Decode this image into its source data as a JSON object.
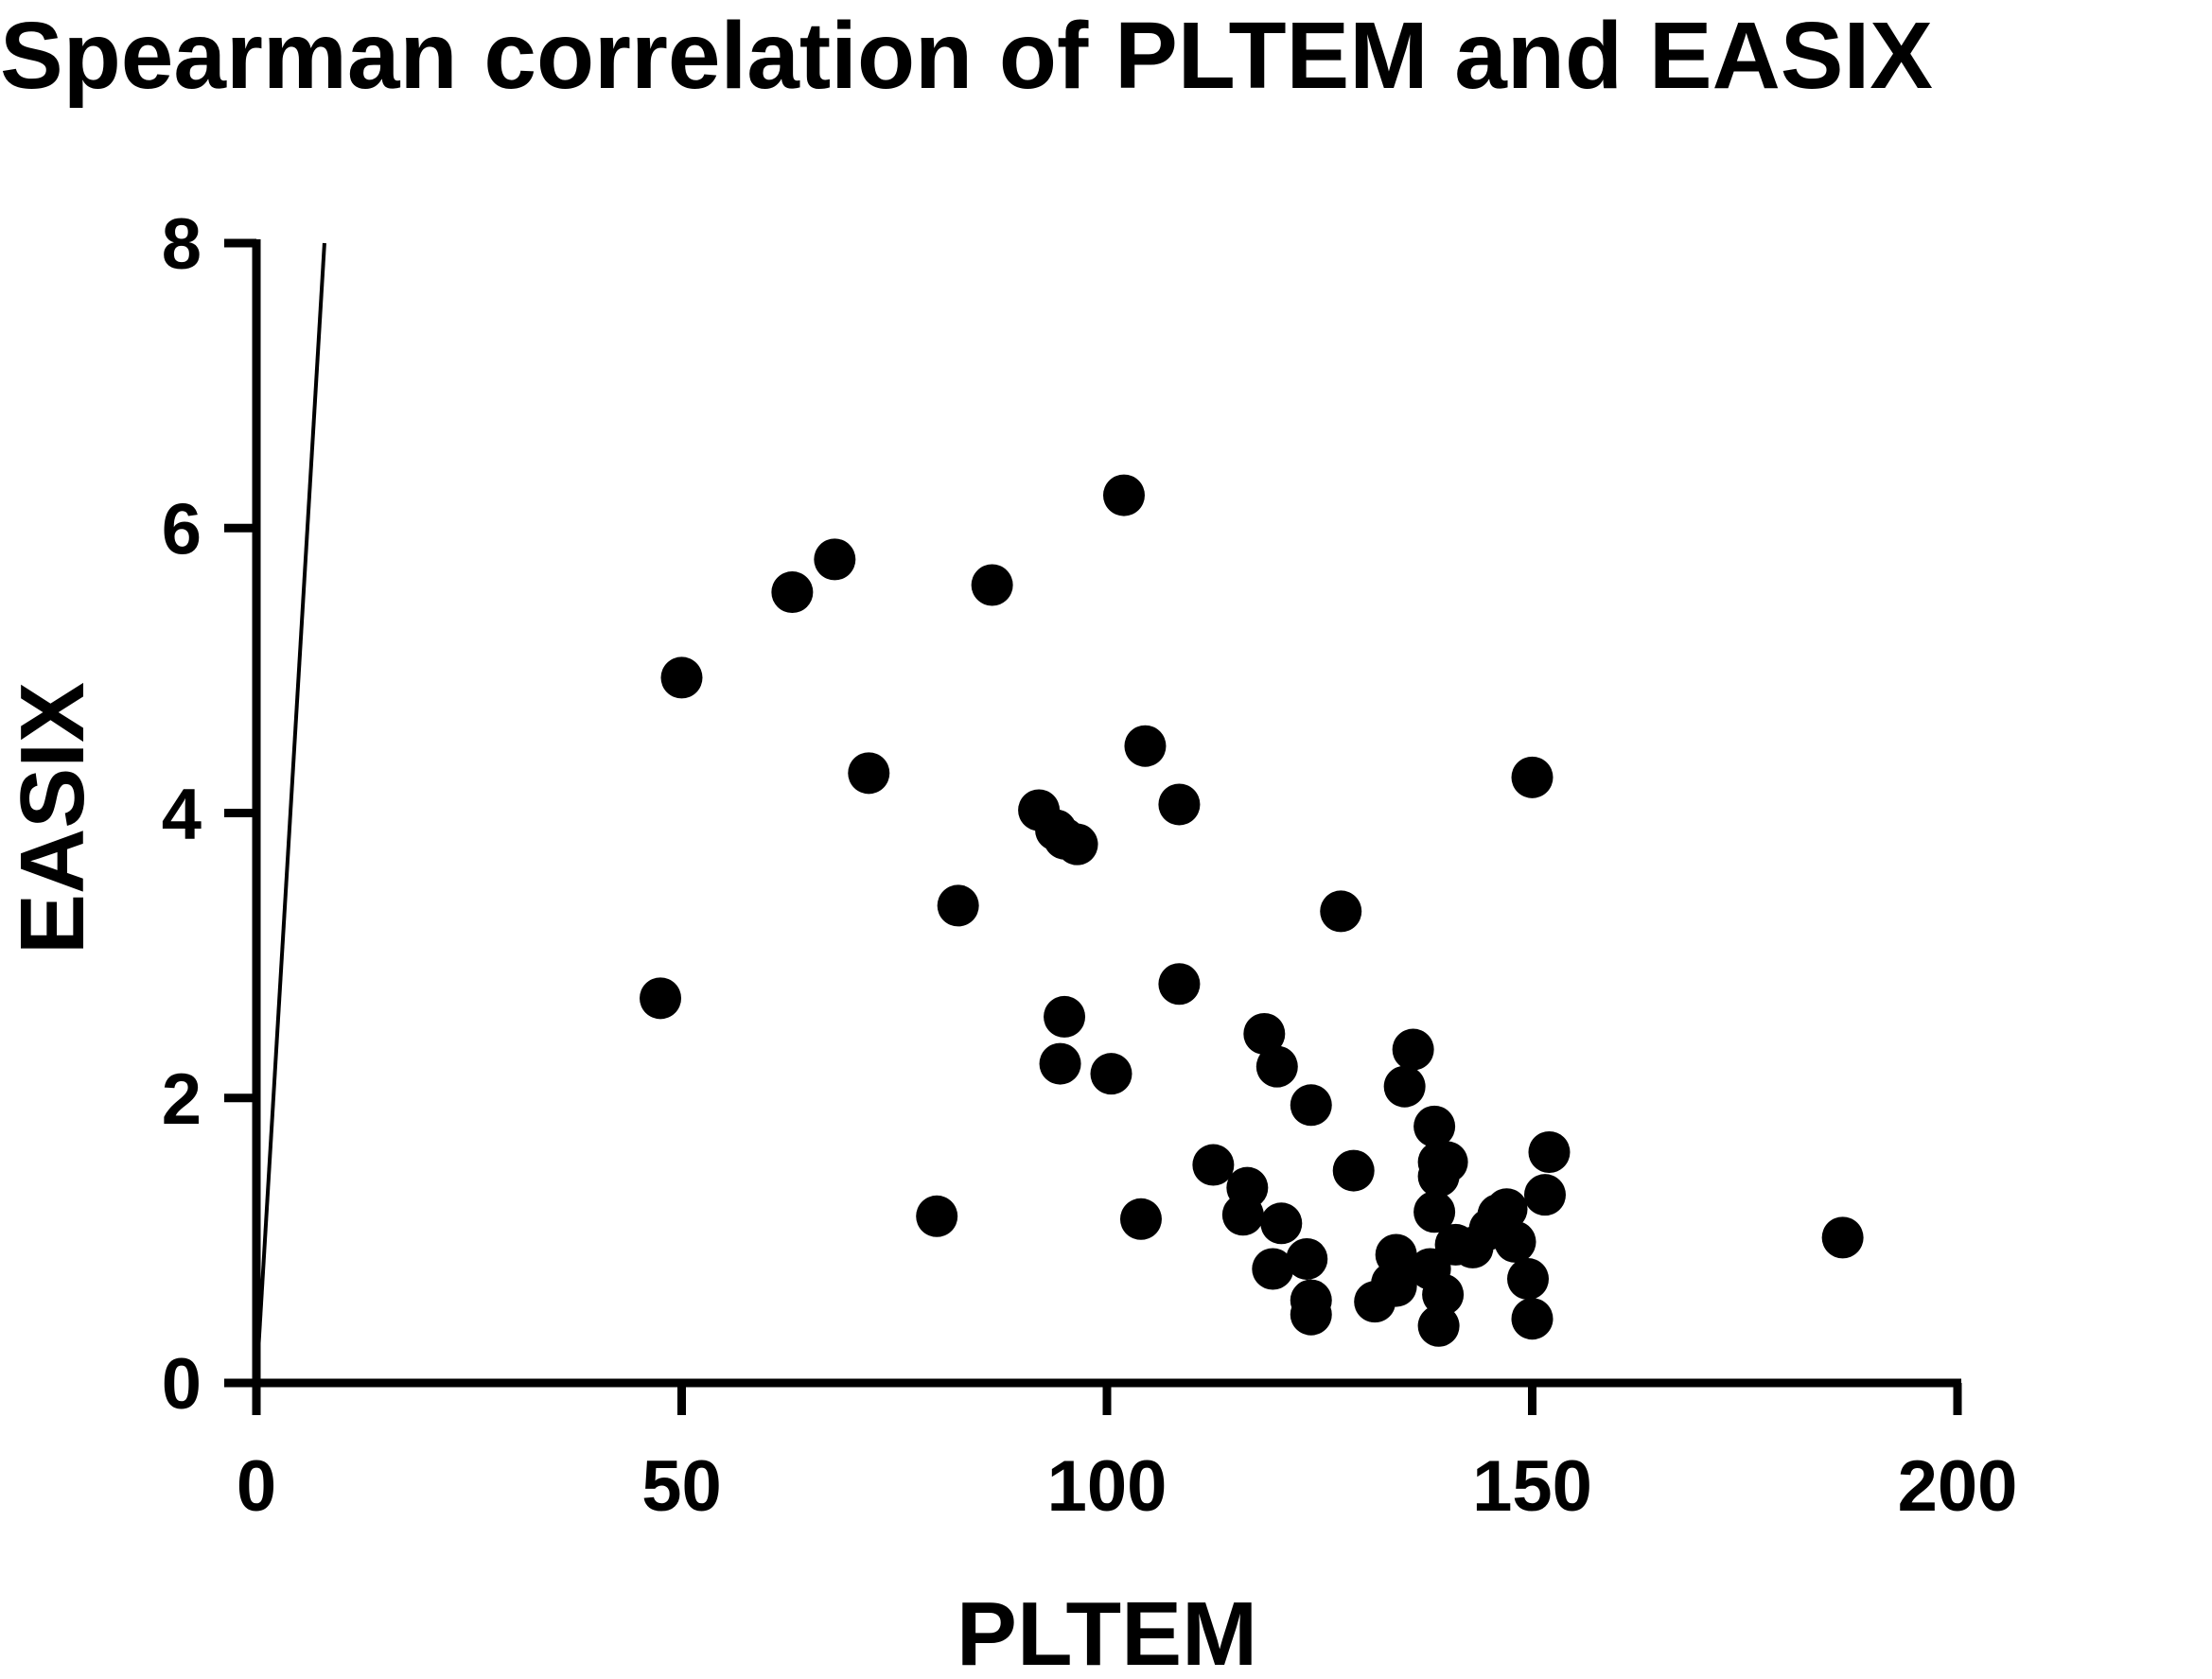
{
  "chart_data": {
    "type": "scatter",
    "title": "Spearman correlation of PLTEM and EASIX",
    "xlabel": "PLTEM",
    "ylabel": "EASIX",
    "xlim": [
      0,
      200
    ],
    "ylim": [
      0,
      8
    ],
    "xticks": [
      0,
      50,
      100,
      150,
      200
    ],
    "yticks": [
      0,
      2,
      4,
      6,
      8
    ],
    "xtick_labels": [
      "0",
      "50",
      "100",
      "150",
      "200"
    ],
    "ytick_labels": [
      "0",
      "2",
      "4",
      "6",
      "8"
    ],
    "grid": false,
    "legend": "none",
    "point_color": "#000000",
    "line_color": "#000000",
    "reference_line": {
      "x": [
        0,
        8
      ],
      "y": [
        0,
        8
      ]
    },
    "series": [
      {
        "x": [
          47.5,
          50,
          63,
          68,
          72,
          80,
          82.5,
          86.5,
          92,
          94,
          95,
          95,
          96.5,
          94.5,
          100.5,
          102,
          104.5,
          104,
          108.5,
          108.5,
          112.5,
          116.5,
          116,
          118.5,
          119.5,
          120,
          120.5,
          123.5,
          124,
          124,
          124,
          127.5,
          129,
          131.5,
          133.5,
          134,
          134,
          135,
          136,
          138,
          138.5,
          139,
          139,
          138.5,
          139,
          139.5,
          140,
          141,
          143,
          145,
          146,
          147,
          148,
          149.5,
          150,
          150,
          151.5,
          152,
          186.5
        ],
        "y": [
          2.7,
          4.95,
          5.55,
          5.78,
          4.28,
          1.17,
          3.35,
          5.6,
          4.02,
          3.88,
          3.82,
          2.57,
          3.78,
          2.24,
          2.17,
          6.23,
          4.47,
          1.15,
          4.06,
          2.8,
          1.53,
          1.37,
          1.18,
          2.45,
          0.8,
          2.22,
          1.12,
          0.87,
          1.95,
          0.58,
          0.48,
          3.31,
          1.49,
          0.57,
          0.7,
          0.9,
          0.68,
          2.08,
          2.34,
          0.8,
          1.8,
          1.55,
          1.45,
          1.2,
          0.4,
          0.62,
          1.55,
          0.97,
          0.95,
          1.08,
          1.18,
          1.22,
          0.99,
          0.73,
          0.45,
          4.25,
          1.32,
          1.62,
          1.02
        ]
      }
    ]
  }
}
